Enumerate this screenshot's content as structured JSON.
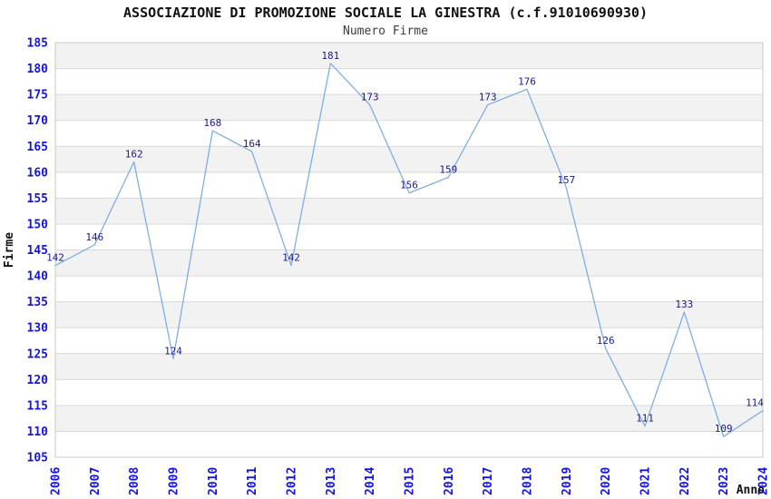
{
  "chart_data": {
    "type": "line",
    "title": "ASSOCIAZIONE DI PROMOZIONE SOCIALE LA GINESTRA (c.f.91010690930)",
    "subtitle": "Numero Firme",
    "xlabel": "Anno",
    "ylabel": "Firme",
    "x": [
      "2006",
      "2007",
      "2008",
      "2009",
      "2010",
      "2011",
      "2012",
      "2013",
      "2014",
      "2015",
      "2016",
      "2017",
      "2018",
      "2019",
      "2020",
      "2021",
      "2022",
      "2023",
      "2024"
    ],
    "series": [
      {
        "name": "Numero Firme",
        "values": [
          142,
          146,
          162,
          124,
          168,
          164,
          142,
          181,
          173,
          156,
          159,
          173,
          176,
          157,
          126,
          111,
          133,
          109,
          114
        ]
      }
    ],
    "ylim": [
      105,
      185
    ],
    "yticks": [
      105,
      110,
      115,
      120,
      125,
      130,
      135,
      140,
      145,
      150,
      155,
      160,
      165,
      170,
      175,
      180,
      185
    ],
    "grid": "horizontal-gridlines-with-alternating-bands",
    "legend": "none",
    "point_labels": "shown above each point",
    "x_tick_rotation": -90,
    "colors": {
      "line": "#7dafe4",
      "point_label": "#1a1a8c",
      "axis_tick": "#1414dd",
      "band": "#f2f2f2",
      "gridline": "#d9d9d9",
      "plot_border": "#c8c8c8",
      "title": "#111111",
      "subtitle": "#3d3d3d",
      "axis_title": "#111111",
      "background": "#ffffff"
    }
  }
}
